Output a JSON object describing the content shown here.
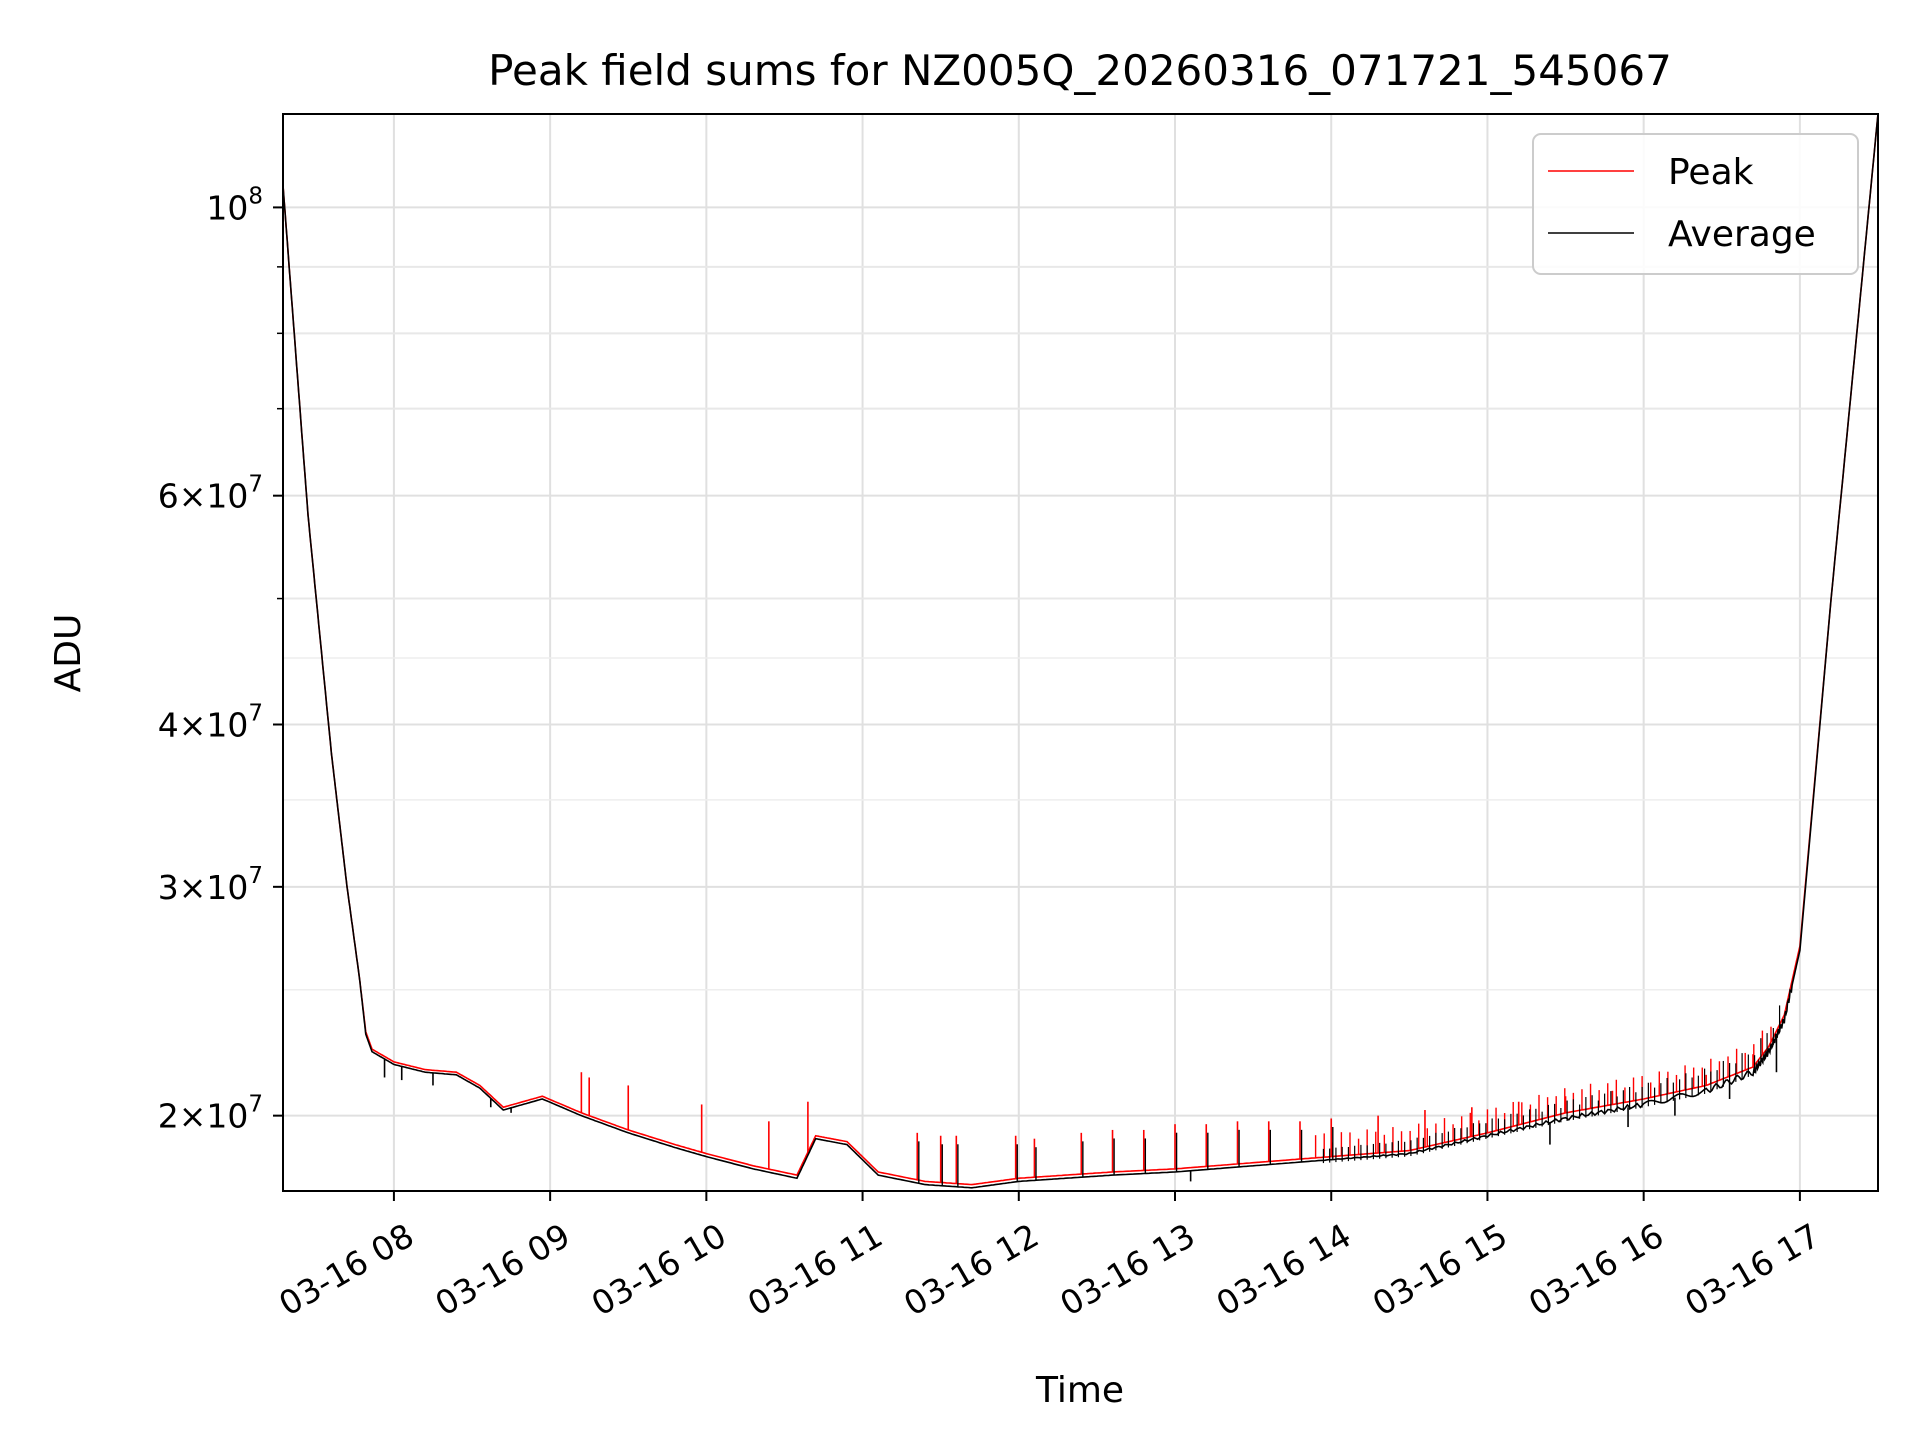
{
  "chart_data": {
    "type": "line",
    "title": "Peak field sums for NZ005Q_20260316_071721_545067",
    "xlabel": "Time",
    "ylabel": "ADU",
    "yscale": "log",
    "xlim": [
      7.29,
      17.5
    ],
    "ylim": [
      17500000,
      118000000
    ],
    "grid": true,
    "legend_position": "top-right",
    "x_ticks": [
      {
        "value": 8,
        "label": "03-16 08"
      },
      {
        "value": 9,
        "label": "03-16 09"
      },
      {
        "value": 10,
        "label": "03-16 10"
      },
      {
        "value": 11,
        "label": "03-16 11"
      },
      {
        "value": 12,
        "label": "03-16 12"
      },
      {
        "value": 13,
        "label": "03-16 13"
      },
      {
        "value": 14,
        "label": "03-16 14"
      },
      {
        "value": 15,
        "label": "03-16 15"
      },
      {
        "value": 16,
        "label": "03-16 16"
      },
      {
        "value": 17,
        "label": "03-16 17"
      }
    ],
    "y_ticks": [
      {
        "value": 20000000,
        "base": "2",
        "mult": "×",
        "ten": "10",
        "exp": "7"
      },
      {
        "value": 30000000,
        "base": "3",
        "mult": "×",
        "ten": "10",
        "exp": "7"
      },
      {
        "value": 40000000,
        "base": "4",
        "mult": "×",
        "ten": "10",
        "exp": "7"
      },
      {
        "value": 60000000,
        "base": "6",
        "mult": "×",
        "ten": "10",
        "exp": "7"
      },
      {
        "value": 100000000,
        "base": "",
        "mult": "",
        "ten": "10",
        "exp": "8"
      }
    ],
    "y_minor_ticks": [
      50000000,
      70000000,
      80000000,
      90000000
    ],
    "x_unit": "hours (2026-03-16 local time)",
    "series": [
      {
        "name": "Peak",
        "color": "#ff0000",
        "x": [
          7.29,
          7.45,
          7.6,
          7.7,
          7.78,
          7.82,
          7.86,
          8.0,
          8.2,
          8.4,
          8.55,
          8.7,
          8.95,
          9.2,
          9.5,
          9.8,
          10.0,
          10.3,
          10.58,
          10.7,
          10.9,
          11.1,
          11.4,
          11.7,
          12.0,
          12.3,
          12.6,
          13.0,
          13.5,
          14.0,
          14.5,
          15.0,
          15.5,
          16.0,
          16.4,
          16.7,
          16.8,
          16.9,
          17.0,
          17.2,
          17.5
        ],
        "values": [
          104000000,
          58000000,
          38000000,
          30000000,
          25500000,
          23200000,
          22500000,
          22000000,
          21700000,
          21600000,
          21100000,
          20300000,
          20700000,
          20100000,
          19500000,
          19000000,
          18700000,
          18300000,
          18000000,
          19300000,
          19100000,
          18100000,
          17800000,
          17700000,
          17900000,
          18000000,
          18100000,
          18200000,
          18400000,
          18600000,
          18800000,
          19400000,
          20100000,
          20600000,
          21100000,
          21800000,
          22600000,
          23900000,
          27000000,
          50000000,
          118000000
        ],
        "spikes": [
          {
            "x": 9.2,
            "value": 21600000
          },
          {
            "x": 9.25,
            "value": 21400000
          },
          {
            "x": 9.5,
            "value": 21100000
          },
          {
            "x": 9.97,
            "value": 20400000
          },
          {
            "x": 10.4,
            "value": 19800000
          },
          {
            "x": 10.65,
            "value": 20500000
          },
          {
            "x": 11.35,
            "value": 19400000
          },
          {
            "x": 11.5,
            "value": 19300000
          },
          {
            "x": 11.6,
            "value": 19300000
          },
          {
            "x": 11.98,
            "value": 19300000
          },
          {
            "x": 12.1,
            "value": 19200000
          },
          {
            "x": 12.4,
            "value": 19400000
          },
          {
            "x": 12.6,
            "value": 19500000
          },
          {
            "x": 12.8,
            "value": 19500000
          },
          {
            "x": 13.0,
            "value": 19700000
          },
          {
            "x": 13.2,
            "value": 19700000
          },
          {
            "x": 13.4,
            "value": 19800000
          },
          {
            "x": 13.6,
            "value": 19800000
          },
          {
            "x": 13.8,
            "value": 19800000
          },
          {
            "x": 14.0,
            "value": 19900000
          },
          {
            "x": 14.3,
            "value": 20000000
          },
          {
            "x": 14.6,
            "value": 20200000
          },
          {
            "x": 14.9,
            "value": 20300000
          },
          {
            "x": 15.2,
            "value": 20500000
          },
          {
            "x": 15.5,
            "value": 20700000
          },
          {
            "x": 15.8,
            "value": 20900000
          },
          {
            "x": 16.1,
            "value": 21100000
          },
          {
            "x": 16.4,
            "value": 21500000
          },
          {
            "x": 16.7,
            "value": 22300000
          }
        ]
      },
      {
        "name": "Average",
        "color": "#000000",
        "x": [
          7.29,
          7.45,
          7.6,
          7.7,
          7.78,
          7.82,
          7.86,
          8.0,
          8.2,
          8.4,
          8.55,
          8.7,
          8.95,
          9.2,
          9.5,
          9.8,
          10.0,
          10.3,
          10.58,
          10.7,
          10.9,
          11.1,
          11.4,
          11.7,
          12.0,
          12.3,
          12.6,
          13.0,
          13.5,
          14.0,
          14.5,
          15.0,
          15.5,
          16.0,
          16.4,
          16.7,
          16.8,
          16.9,
          17.0,
          17.2,
          17.5
        ],
        "values": [
          104000000,
          58000000,
          38000000,
          30000000,
          25500000,
          23100000,
          22400000,
          21900000,
          21600000,
          21500000,
          21000000,
          20200000,
          20600000,
          20000000,
          19400000,
          18900000,
          18600000,
          18200000,
          17900000,
          19200000,
          19000000,
          18000000,
          17700000,
          17600000,
          17800000,
          17900000,
          18000000,
          18100000,
          18300000,
          18500000,
          18700000,
          19300000,
          19900000,
          20400000,
          20900000,
          21600000,
          22400000,
          23700000,
          26800000,
          50000000,
          118000000
        ],
        "dips": [
          {
            "x": 7.94,
            "value": 21400000
          },
          {
            "x": 8.05,
            "value": 21300000
          },
          {
            "x": 8.25,
            "value": 21100000
          },
          {
            "x": 8.62,
            "value": 20300000
          },
          {
            "x": 8.75,
            "value": 20100000
          },
          {
            "x": 13.1,
            "value": 17800000
          },
          {
            "x": 15.4,
            "value": 19000000
          },
          {
            "x": 15.9,
            "value": 19600000
          },
          {
            "x": 16.2,
            "value": 20000000
          },
          {
            "x": 16.55,
            "value": 20600000
          },
          {
            "x": 16.85,
            "value": 21600000
          }
        ]
      }
    ]
  }
}
